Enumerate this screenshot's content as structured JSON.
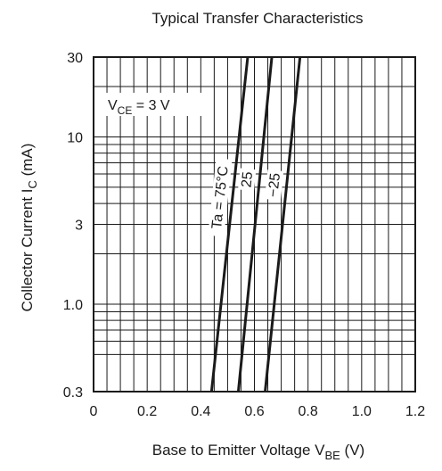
{
  "chart_data": {
    "type": "line",
    "title": "Typical Transfer Characteristics",
    "xlabel": {
      "main": "Base to Emitter Voltage  V",
      "sub": "BE",
      "unit": "  (V)"
    },
    "ylabel": {
      "main": "Collector Current  I",
      "sub": "C",
      "unit": "  (mA)"
    },
    "x_scale": "linear",
    "y_scale": "log",
    "xlim": [
      0,
      1.2
    ],
    "ylim": [
      0.3,
      30
    ],
    "x_ticks": [
      "0",
      "0.2",
      "0.4",
      "0.6",
      "0.8",
      "1.0",
      "1.2"
    ],
    "y_ticks": [
      "0.3",
      "1.0",
      "3",
      "10",
      "30"
    ],
    "grid": true,
    "condition": {
      "main": "V",
      "sub": "CE",
      "rest": " = 3 V"
    },
    "series": [
      {
        "name": "Ta = 75°C",
        "x": [
          0.44,
          0.575
        ],
        "y": [
          0.3,
          30
        ]
      },
      {
        "name": "25",
        "x": [
          0.54,
          0.665
        ],
        "y": [
          0.3,
          30
        ]
      },
      {
        "name": "−25",
        "x": [
          0.64,
          0.77
        ],
        "y": [
          0.3,
          30
        ]
      }
    ]
  }
}
